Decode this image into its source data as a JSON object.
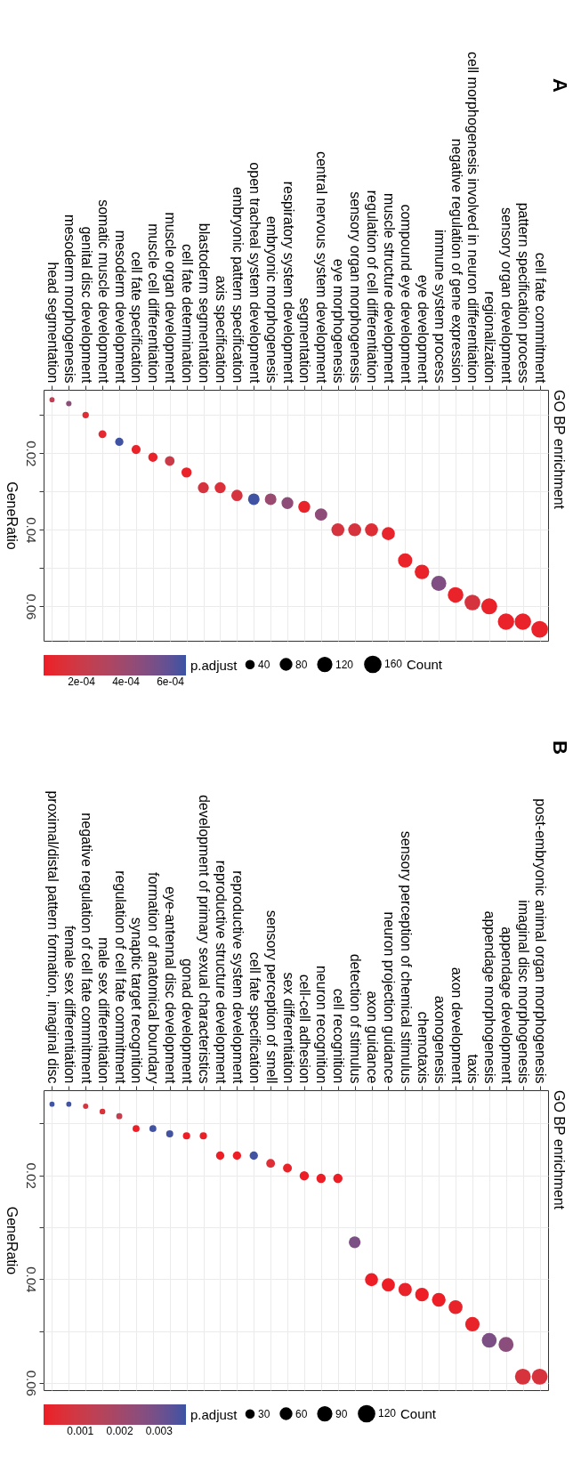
{
  "chart_data": [
    {
      "type": "bubble",
      "title": "GO BP enrichment",
      "ylabel": "GeneRatio",
      "legend_title": "Count",
      "clabel": "p.adjust",
      "annotations": [
        "A"
      ],
      "grid": true,
      "marker": "circle",
      "categories": [
        "head segmentation",
        "mesoderm morphogenesis",
        "genital disc development",
        "somatic muscle development",
        "mesoderm development",
        "cell fate specification",
        "muscle cell differentiation",
        "muscle organ development",
        "cell fate determination",
        "blastoderm segmentation",
        "axis specification",
        "embryonic pattern specification",
        "open tracheal system development",
        "embryonic morphogenesis",
        "respiratory system development",
        "segmentation",
        "central nervous system development",
        "eye morphogenesis",
        "sensory organ morphogenesis",
        "regulation of cell differentiation",
        "muscle structure development",
        "compound eye development",
        "eye development",
        "immune system process",
        "negative regulation of gene expression",
        "cell morphogenesis involved in neuron differentiation",
        "regionalization",
        "sensory organ development",
        "pattern specification process",
        "cell fate commitment"
      ],
      "values": [
        0.006,
        0.007,
        0.01,
        0.015,
        0.017,
        0.019,
        0.021,
        0.022,
        0.025,
        0.029,
        0.029,
        0.031,
        0.032,
        0.032,
        0.033,
        0.034,
        0.036,
        0.04,
        0.04,
        0.04,
        0.041,
        0.048,
        0.051,
        0.054,
        0.057,
        0.059,
        0.06,
        0.064,
        0.064,
        0.066
      ],
      "sizes": [
        16,
        18,
        26,
        39,
        42,
        50,
        53,
        57,
        63,
        74,
        75,
        79,
        82,
        83,
        86,
        88,
        94,
        103,
        103,
        104,
        105,
        124,
        130,
        139,
        148,
        152,
        155,
        164,
        166,
        170
      ],
      "size_legend": [
        40,
        80,
        120,
        160
      ],
      "cvalues": [
        0.00025,
        0.00045,
        0.0001,
        8e-05,
        0.00066,
        5e-05,
        5e-05,
        0.0002,
        5e-05,
        0.00015,
        0.00012,
        0.00015,
        0.00066,
        0.0004,
        0.00045,
        5e-05,
        0.00045,
        0.00015,
        0.00015,
        0.0001,
        6e-05,
        5e-05,
        5e-05,
        0.0005,
        5e-05,
        0.00015,
        5e-05,
        5e-05,
        5e-05,
        5e-05
      ],
      "clim": [
        3e-05,
        0.00067
      ],
      "cticks": [
        {
          "value": 0.0002,
          "label": "2e-04"
        },
        {
          "value": 0.0004,
          "label": "4e-04"
        },
        {
          "value": 0.0006,
          "label": "6e-04"
        }
      ],
      "ylim": [
        0.069,
        0.0034
      ],
      "yticks": [
        {
          "value": 0.01,
          "label": null
        },
        0.02,
        {
          "value": 0.03,
          "label": null
        },
        0.04,
        {
          "value": 0.05,
          "label": null
        },
        0.06
      ]
    },
    {
      "type": "bubble",
      "title": "GO BP enrichment",
      "ylabel": "GeneRatio",
      "legend_title": "Count",
      "clabel": "p.adjust",
      "annotations": [
        "B"
      ],
      "grid": true,
      "marker": "circle",
      "categories": [
        "proximal/distal pattern formation, imaginal disc",
        "female sex differentiation",
        "negative regulation of cell fate commitment",
        "male sex differentiation",
        "regulation of cell fate commitment",
        "synaptic target recognition",
        "formation of anatomical boundary",
        "eye-antennal disc development",
        "gonad development",
        "development of primary sexual characteristics",
        "reproductive structure development",
        "reproductive system development",
        "cell fate specification",
        "sensory perception of smell",
        "sex differentiation",
        "cell-cell adhesion",
        "neuron recognition",
        "cell recognition",
        "detection of stimulus",
        "axon guidance",
        "neuron projection guidance",
        "sensory perception of chemical stimulus",
        "chemotaxis",
        "axonogenesis",
        "axon development",
        "taxis",
        "appendage morphogenesis",
        "appendage development",
        "imaginal disc morphogenesis",
        "post-embryonic animal organ morphogenesis"
      ],
      "values": [
        0.0063,
        0.0063,
        0.0067,
        0.0077,
        0.0086,
        0.011,
        0.011,
        0.012,
        0.0124,
        0.0124,
        0.0162,
        0.0162,
        0.0162,
        0.0177,
        0.0186,
        0.0201,
        0.0206,
        0.0206,
        0.0329,
        0.0401,
        0.0411,
        0.042,
        0.043,
        0.044,
        0.0454,
        0.0487,
        0.0518,
        0.0526,
        0.0588,
        0.0588
      ],
      "sizes": [
        12,
        12,
        13,
        15,
        17,
        22,
        22,
        23,
        24,
        24,
        32,
        32,
        32,
        35,
        36,
        39,
        40,
        40,
        64,
        78,
        80,
        82,
        84,
        86,
        89,
        95,
        101,
        103,
        115,
        115
      ],
      "size_legend": [
        30,
        60,
        90,
        120
      ],
      "cvalues": [
        0.0036,
        0.0036,
        0.0008,
        0.0006,
        0.0012,
        0.0001,
        0.0036,
        0.0036,
        0.0001,
        0.0001,
        0.0001,
        0.0001,
        0.0036,
        0.0005,
        0.0002,
        0.0001,
        0.0001,
        0.0001,
        0.0028,
        0.0001,
        0.0001,
        0.0002,
        0.0001,
        0.0001,
        0.0002,
        0.0002,
        0.0028,
        0.0025,
        0.0007,
        0.0007
      ],
      "clim": [
        7e-05,
        0.00368
      ],
      "cticks": [
        0.001,
        0.002,
        0.003
      ],
      "ylim": [
        0.0614,
        0.0036
      ],
      "yticks": [
        {
          "value": 0.01,
          "label": null
        },
        0.02,
        {
          "value": 0.03,
          "label": null
        },
        0.04,
        {
          "value": 0.05,
          "label": null
        },
        0.06
      ]
    }
  ]
}
